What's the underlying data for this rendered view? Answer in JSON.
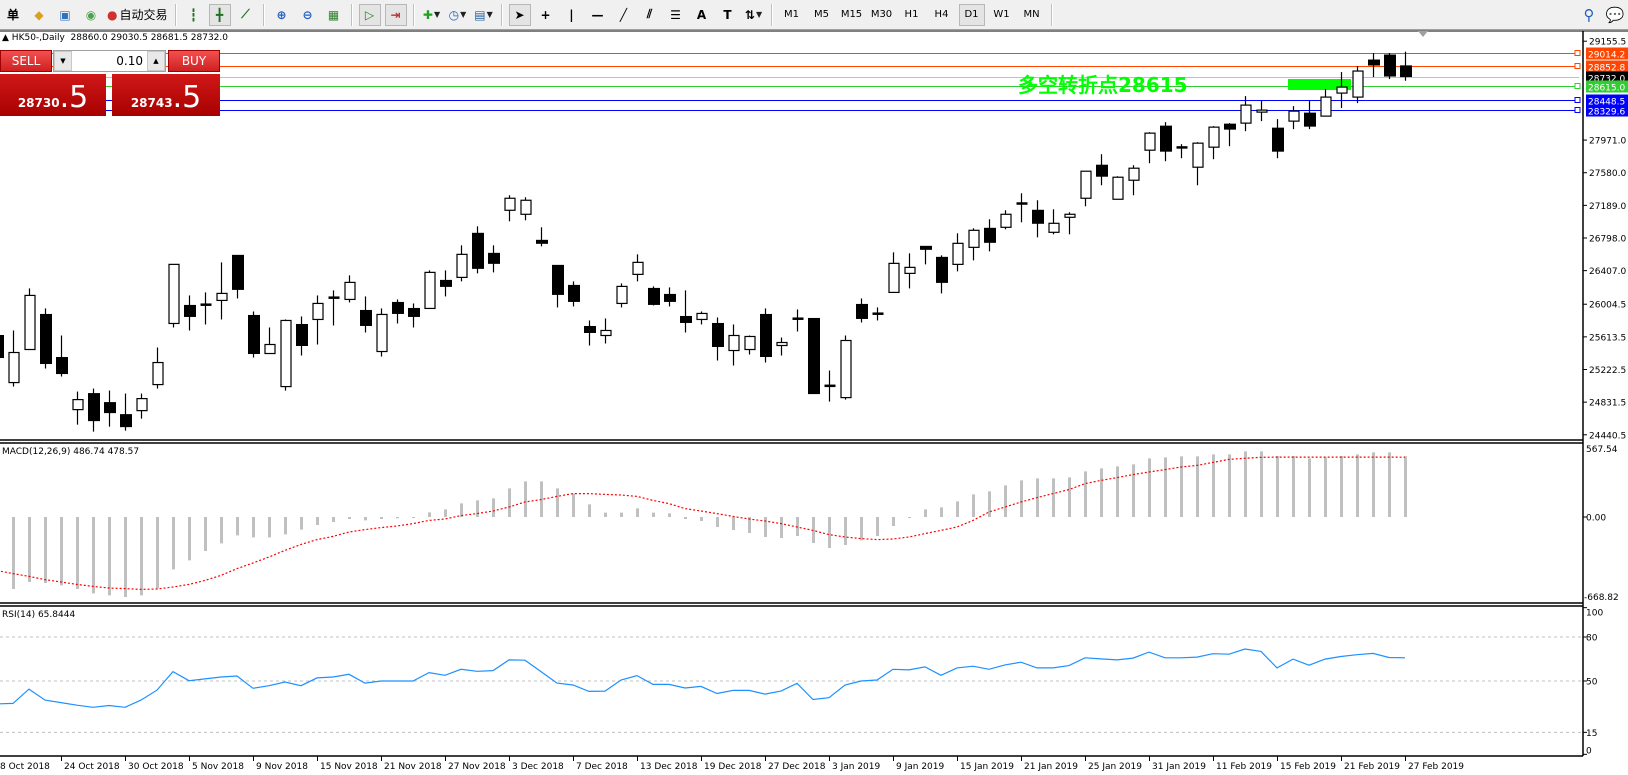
{
  "toolbar": {
    "left_items": [
      {
        "name": "new-order-icon",
        "glyph": "单",
        "type": "text"
      },
      {
        "name": "gold-icon",
        "glyph": "◆",
        "color": "#d9a020"
      },
      {
        "name": "market-watch-icon",
        "glyph": "▣",
        "color": "#3070c0"
      },
      {
        "name": "signal-icon",
        "glyph": "◉",
        "color": "#50a050"
      },
      {
        "name": "autotrading-button",
        "glyph": "●",
        "color": "#d03030",
        "label": "自动交易"
      },
      {
        "sep": true
      },
      {
        "name": "bar-chart-icon",
        "glyph": "┇",
        "color": "#207020"
      },
      {
        "name": "candlestick-chart-icon",
        "glyph": "╋",
        "color": "#207020",
        "pressed": true
      },
      {
        "name": "line-chart-icon",
        "glyph": "⟋",
        "color": "#207020"
      },
      {
        "sep": true
      },
      {
        "name": "zoom-in-icon",
        "glyph": "⊕",
        "color": "#2060c0"
      },
      {
        "name": "zoom-out-icon",
        "glyph": "⊖",
        "color": "#2060c0"
      },
      {
        "name": "tile-windows-icon",
        "glyph": "▦",
        "color": "#308030"
      },
      {
        "sep": true
      },
      {
        "name": "autoscroll-icon",
        "glyph": "▷",
        "color": "#208020",
        "pressed": true
      },
      {
        "name": "chart-shift-icon",
        "glyph": "⇥",
        "color": "#c03030",
        "pressed": true
      },
      {
        "sep": true
      },
      {
        "name": "indicators-icon",
        "glyph": "✚",
        "color": "#20a020",
        "dropdown": true
      },
      {
        "name": "periods-clock-icon",
        "glyph": "◷",
        "color": "#2060c0",
        "dropdown": true
      },
      {
        "name": "templates-icon",
        "glyph": "▤",
        "color": "#2060a0",
        "dropdown": true
      },
      {
        "sep": true
      },
      {
        "name": "cursor-icon",
        "glyph": "➤",
        "color": "#000",
        "pressed": true
      },
      {
        "name": "crosshair-icon",
        "glyph": "+",
        "color": "#000"
      },
      {
        "name": "vertical-line-icon",
        "glyph": "|",
        "color": "#000"
      },
      {
        "name": "horizontal-line-icon",
        "glyph": "—",
        "color": "#000"
      },
      {
        "name": "trendline-icon",
        "glyph": "╱",
        "color": "#000"
      },
      {
        "name": "equidistant-channel-icon",
        "glyph": "⫽",
        "color": "#000"
      },
      {
        "name": "fibonacci-icon",
        "glyph": "☰",
        "color": "#000"
      },
      {
        "name": "text-icon",
        "glyph": "A",
        "color": "#000"
      },
      {
        "name": "text-label-icon",
        "glyph": "T",
        "color": "#000"
      },
      {
        "name": "arrows-icon",
        "glyph": "⇅",
        "color": "#000",
        "dropdown": true
      },
      {
        "sep": true
      }
    ],
    "timeframes": [
      "M1",
      "M5",
      "M15",
      "M30",
      "H1",
      "H4",
      "D1",
      "W1",
      "MN"
    ],
    "active_timeframe": "D1",
    "right_items": [
      {
        "name": "search-icon",
        "glyph": "⚲",
        "color": "#2060c0"
      },
      {
        "name": "chat-icon",
        "glyph": "💬",
        "color": "#888"
      }
    ]
  },
  "chart": {
    "symbol_period": "HK50-,Daily",
    "ohlc_text": "28860.0 29030.5 28681.5 28732.0"
  },
  "trade_panel": {
    "sell_label": "SELL",
    "buy_label": "BUY",
    "lot": "0.10",
    "sell_price_main": "28730",
    "sell_price_frac": ".5",
    "buy_price_main": "28743",
    "buy_price_frac": ".5"
  },
  "annotation": {
    "text": "多空转折点28615",
    "color": "#00ff00"
  },
  "levels": [
    {
      "price": 29014.2,
      "label": "29014.2",
      "color": "#ff4500"
    },
    {
      "price": 28852.8,
      "label": "28852.8",
      "color": "#ff4500"
    },
    {
      "price": 28732.0,
      "label": "28732.0",
      "color": "#000000",
      "line_color": "#c0c0c0"
    },
    {
      "price": 28615.0,
      "label": "28615.0",
      "color": "#32cd32"
    },
    {
      "price": 28448.5,
      "label": "28448.5",
      "color": "#0000ff"
    },
    {
      "price": 28329.6,
      "label": "28329.6",
      "color": "#0000ff"
    }
  ],
  "price_axis": [
    "29155.5",
    "27971.0",
    "27580.0",
    "27189.0",
    "26798.0",
    "26407.0",
    "26004.5",
    "25613.5",
    "25222.5",
    "24831.5",
    "24440.5"
  ],
  "macd": {
    "label": "MACD(12,26,9) 486.74 478.57",
    "axis": [
      "567.54",
      "0.00",
      "-668.82"
    ],
    "hist_color": "#c0c0c0",
    "signal_color": "#ff0000"
  },
  "rsi": {
    "label": "RSI(14) 65.8444",
    "axis": [
      "100",
      "80",
      "50",
      "15",
      "0"
    ],
    "levels": [
      80,
      50,
      15
    ],
    "color": "#1e90ff"
  },
  "chart_data": {
    "type": "candlestick",
    "symbol": "HK50-",
    "timeframe": "Daily",
    "ylim": [
      24440.5,
      29155.5
    ],
    "date_labels": [
      "8 Oct 2018",
      "24 Oct 2018",
      "30 Oct 2018",
      "5 Nov 2018",
      "9 Nov 2018",
      "15 Nov 2018",
      "21 Nov 2018",
      "27 Nov 2018",
      "3 Dec 2018",
      "7 Dec 2018",
      "13 Dec 2018",
      "19 Dec 2018",
      "27 Dec 2018",
      "3 Jan 2019",
      "9 Jan 2019",
      "15 Jan 2019",
      "21 Jan 2019",
      "25 Jan 2019",
      "31 Jan 2019",
      "11 Feb 2019",
      "15 Feb 2019",
      "21 Feb 2019",
      "27 Feb 2019"
    ],
    "ohlc": [
      [
        25630,
        25786,
        25210,
        25366
      ],
      [
        25066,
        25690,
        25018,
        25426
      ],
      [
        25462,
        26194,
        25462,
        26110
      ],
      [
        25882,
        25954,
        25234,
        25294
      ],
      [
        25366,
        25630,
        25138,
        25174
      ],
      [
        24742,
        24958,
        24562,
        24862
      ],
      [
        24934,
        24994,
        24478,
        24610
      ],
      [
        24826,
        24970,
        24538,
        24706
      ],
      [
        24682,
        24934,
        24490,
        24538
      ],
      [
        24730,
        24934,
        24634,
        24874
      ],
      [
        25042,
        25486,
        24994,
        25306
      ],
      [
        25774,
        26482,
        25726,
        26482
      ],
      [
        25990,
        26110,
        25690,
        25858
      ],
      [
        26002,
        26146,
        25762,
        26002
      ],
      [
        26050,
        26506,
        25822,
        26134
      ],
      [
        26590,
        26590,
        26074,
        26182
      ],
      [
        25870,
        25918,
        25366,
        25414
      ],
      [
        25414,
        25726,
        25414,
        25522
      ],
      [
        25018,
        25822,
        24970,
        25810
      ],
      [
        25762,
        25858,
        25390,
        25510
      ],
      [
        25822,
        26110,
        25522,
        26014
      ],
      [
        26086,
        26170,
        25750,
        26086
      ],
      [
        26062,
        26350,
        26026,
        26266
      ],
      [
        25930,
        26098,
        25666,
        25750
      ],
      [
        25438,
        25954,
        25378,
        25882
      ],
      [
        26026,
        26062,
        25774,
        25894
      ],
      [
        25954,
        26014,
        25726,
        25858
      ],
      [
        25954,
        26410,
        25954,
        26386
      ],
      [
        26290,
        26410,
        26098,
        26218
      ],
      [
        26326,
        26710,
        26278,
        26602
      ],
      [
        26854,
        26938,
        26374,
        26434
      ],
      [
        26614,
        26710,
        26386,
        26494
      ],
      [
        27130,
        27310,
        26998,
        27274
      ],
      [
        27082,
        27286,
        27010,
        27250
      ],
      [
        26770,
        26926,
        26698,
        26734
      ],
      [
        26470,
        26470,
        25966,
        26122
      ],
      [
        26230,
        26278,
        25978,
        26038
      ],
      [
        25738,
        25810,
        25510,
        25666
      ],
      [
        25630,
        25834,
        25534,
        25690
      ],
      [
        26014,
        26254,
        25966,
        26218
      ],
      [
        26362,
        26602,
        26278,
        26506
      ],
      [
        26194,
        26218,
        25990,
        26002
      ],
      [
        26122,
        26206,
        25978,
        26038
      ],
      [
        25858,
        26170,
        25666,
        25786
      ],
      [
        25822,
        25918,
        25762,
        25894
      ],
      [
        25774,
        25846,
        25330,
        25498
      ],
      [
        25450,
        25762,
        25270,
        25630
      ],
      [
        25462,
        25630,
        25402,
        25618
      ],
      [
        25882,
        25954,
        25306,
        25378
      ],
      [
        25510,
        25606,
        25390,
        25546
      ],
      [
        25834,
        25942,
        25678,
        25834
      ],
      [
        25834,
        25834,
        24934,
        24934
      ],
      [
        25030,
        25210,
        24838,
        25030
      ],
      [
        24886,
        25630,
        24862,
        25570
      ],
      [
        26002,
        26074,
        25786,
        25834
      ],
      [
        25894,
        25966,
        25810,
        25894
      ],
      [
        26146,
        26626,
        26146,
        26494
      ],
      [
        26374,
        26614,
        26194,
        26446
      ],
      [
        26698,
        26698,
        26482,
        26662
      ],
      [
        26566,
        26590,
        26134,
        26266
      ],
      [
        26482,
        26854,
        26398,
        26734
      ],
      [
        26686,
        26914,
        26530,
        26890
      ],
      [
        26914,
        27022,
        26638,
        26746
      ],
      [
        26926,
        27130,
        26902,
        27082
      ],
      [
        27214,
        27334,
        26986,
        27214
      ],
      [
        27130,
        27250,
        26806,
        26974
      ],
      [
        26866,
        27142,
        26842,
        26974
      ],
      [
        27046,
        27106,
        26842,
        27082
      ],
      [
        27274,
        27598,
        27178,
        27598
      ],
      [
        27670,
        27802,
        27430,
        27538
      ],
      [
        27262,
        27538,
        27262,
        27526
      ],
      [
        27490,
        27670,
        27310,
        27634
      ],
      [
        27850,
        28066,
        27694,
        28054
      ],
      [
        28138,
        28186,
        27718,
        27838
      ],
      [
        27886,
        27922,
        27754,
        27886
      ],
      [
        27646,
        27946,
        27430,
        27934
      ],
      [
        27886,
        28138,
        27742,
        28126
      ],
      [
        28162,
        28174,
        27898,
        28102
      ],
      [
        28174,
        28498,
        28078,
        28390
      ],
      [
        28306,
        28438,
        28198,
        28330
      ],
      [
        28114,
        28222,
        27754,
        27838
      ],
      [
        28198,
        28378,
        28102,
        28318
      ],
      [
        28294,
        28438,
        28102,
        28138
      ],
      [
        28258,
        28582,
        28258,
        28486
      ],
      [
        28534,
        28786,
        28354,
        28606
      ],
      [
        28486,
        28858,
        28414,
        28798
      ],
      [
        28930,
        29014,
        28726,
        28870
      ],
      [
        28990,
        29014,
        28702,
        28738
      ],
      [
        28860,
        29030.5,
        28681.5,
        28732
      ]
    ],
    "macd_hist": [
      -560,
      -576,
      -520,
      -528,
      -547,
      -576,
      -611,
      -627,
      -640,
      -627,
      -571,
      -419,
      -347,
      -272,
      -211,
      -147,
      -163,
      -163,
      -139,
      -101,
      -64,
      -40,
      -16,
      -27,
      -16,
      -11,
      -5,
      37,
      61,
      109,
      133,
      149,
      229,
      285,
      285,
      229,
      187,
      101,
      35,
      35,
      69,
      35,
      29,
      -16,
      -32,
      -80,
      -104,
      -128,
      -160,
      -168,
      -152,
      -208,
      -248,
      -224,
      -187,
      -152,
      -72,
      -5,
      61,
      77,
      125,
      181,
      205,
      253,
      293,
      309,
      309,
      317,
      365,
      389,
      405,
      421,
      469,
      477,
      485,
      485,
      501,
      501,
      525,
      525,
      488,
      488,
      469,
      477,
      488,
      501,
      517,
      517,
      486.74
    ],
    "macd_signal": [
      -429,
      -453,
      -475,
      -501,
      -520,
      -539,
      -555,
      -568,
      -573,
      -579,
      -576,
      -560,
      -539,
      -507,
      -467,
      -413,
      -368,
      -320,
      -267,
      -219,
      -181,
      -155,
      -120,
      -101,
      -85,
      -72,
      -53,
      -27,
      -16,
      11,
      27,
      48,
      80,
      120,
      139,
      165,
      187,
      187,
      181,
      176,
      165,
      133,
      107,
      67,
      48,
      27,
      5,
      -16,
      -32,
      -53,
      -80,
      -107,
      -141,
      -160,
      -173,
      -181,
      -176,
      -160,
      -133,
      -107,
      -80,
      -27,
      40,
      80,
      120,
      155,
      187,
      219,
      267,
      293,
      315,
      339,
      360,
      379,
      400,
      413,
      437,
      461,
      470,
      478,
      479,
      479,
      479,
      479,
      479,
      479,
      479,
      479,
      478.57
    ],
    "macd_ylim": [
      -668.82,
      567.54
    ],
    "rsi": [
      34.4,
      34.7,
      44.5,
      37.0,
      35.3,
      33.5,
      32.1,
      33.3,
      32.1,
      37.0,
      43.8,
      56.4,
      50.2,
      51.4,
      52.7,
      53.4,
      45.0,
      46.8,
      49.3,
      46.8,
      52.1,
      52.7,
      54.6,
      48.6,
      50.0,
      50.0,
      50.0,
      55.7,
      53.9,
      58.0,
      56.6,
      57.1,
      64.4,
      64.2,
      56.4,
      48.6,
      47.3,
      42.9,
      43.1,
      50.7,
      53.7,
      47.7,
      47.7,
      45.2,
      46.3,
      41.5,
      43.6,
      43.6,
      41.1,
      43.1,
      48.4,
      37.4,
      38.6,
      47.3,
      50.0,
      50.7,
      58.0,
      57.6,
      59.6,
      53.9,
      58.9,
      60.1,
      58.0,
      61.0,
      62.8,
      58.9,
      58.9,
      60.5,
      65.8,
      65.1,
      64.4,
      65.6,
      69.7,
      65.8,
      65.8,
      66.3,
      68.6,
      68.3,
      71.8,
      70.2,
      58.9,
      64.9,
      60.8,
      64.9,
      66.7,
      67.9,
      68.8,
      66.0,
      65.8444
    ],
    "rsi_ylim": [
      0,
      100
    ]
  }
}
